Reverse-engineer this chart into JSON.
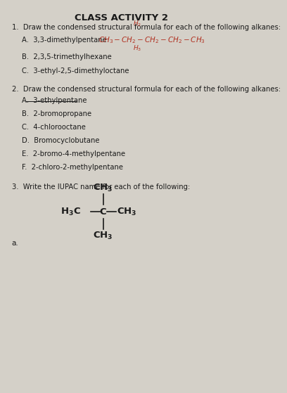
{
  "title": "CLASS ACTIVITY 2",
  "background_color": "#d4d0c8",
  "text_color": "#1a1a1a",
  "section1_header": "1.  Draw the condensed structural formula for each of the following alkanes:",
  "section1_items": [
    "A.  3,3-dimethylpentane",
    "B.  2,3,5-trimethylhexane",
    "C.  3-ethyl-2,5-dimethyloctane"
  ],
  "section2_header": "2.  Draw the condensed structural formula for each of the following alkanes:",
  "section2_items": [
    "A.  3-ethylpentane",
    "B.  2-bromopropane",
    "C.  4-chlorooctane",
    "D.  Bromocyclobutane",
    "E.  2-bromo-4-methylpentane",
    "F.  2-chloro-2-methylpentane"
  ],
  "section3_header": "3.  Write the IUPAC name for each of the following:",
  "section3_label": "a.",
  "formula_color": "#b03020"
}
